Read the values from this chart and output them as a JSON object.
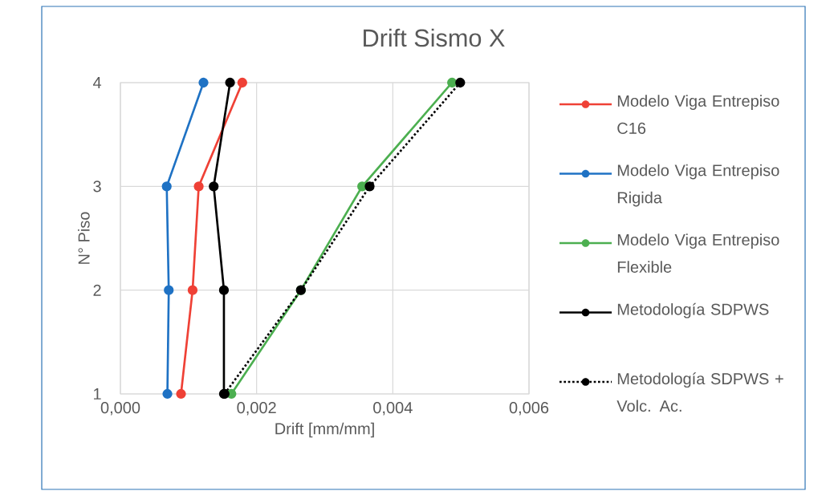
{
  "chart_data": {
    "type": "line",
    "title": "Drift Sismo X",
    "xlabel": "Drift [mm/mm]",
    "ylabel": "N° Piso",
    "xlim": [
      0,
      0.006
    ],
    "xticks": [
      {
        "value": 0,
        "label": "0,000"
      },
      {
        "value": 0.002,
        "label": "0,002"
      },
      {
        "value": 0.004,
        "label": "0,004"
      },
      {
        "value": 0.006,
        "label": "0,006"
      }
    ],
    "ylim": [
      1,
      4
    ],
    "yticks": [
      1,
      2,
      3,
      4
    ],
    "grid": true,
    "legend": "right",
    "marker": "circle",
    "series": [
      {
        "name": "Modelo Viga Entrepiso C16",
        "color": "#ef4136",
        "line_style": "solid",
        "x": [
          0.00089,
          0.00106,
          0.00115,
          0.00179
        ],
        "values": [
          1,
          2,
          3,
          4
        ]
      },
      {
        "name": "Modelo Viga Entrepiso Rigida",
        "color": "#1f72c4",
        "line_style": "solid",
        "x": [
          0.00069,
          0.00071,
          0.00068,
          0.00122
        ],
        "values": [
          1,
          2,
          3,
          4
        ]
      },
      {
        "name": "Modelo Viga Entrepiso Flexible",
        "color": "#4caf50",
        "line_style": "solid",
        "x": [
          0.00163,
          0.00265,
          0.00355,
          0.00487
        ],
        "values": [
          1,
          2,
          3,
          4
        ]
      },
      {
        "name": "Metodología SDPWS",
        "color": "#000000",
        "line_style": "solid",
        "x": [
          0.00152,
          0.00152,
          0.00137,
          0.00161
        ],
        "values": [
          1,
          2,
          3,
          4
        ]
      },
      {
        "name": "Metodología SDPWS + Volc. Ac.",
        "color": "#000000",
        "line_style": "dotted",
        "x": [
          0.00153,
          0.00265,
          0.00366,
          0.00499
        ],
        "values": [
          1,
          2,
          3,
          4
        ]
      }
    ]
  }
}
